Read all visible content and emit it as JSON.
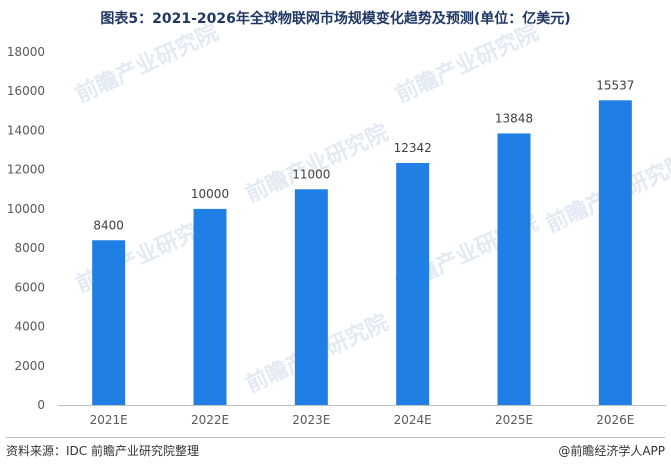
{
  "header": {
    "title": "图表5：2021-2026年全球物联网市场规模变化趋势及预测(单位：亿美元)"
  },
  "footer": {
    "source": "资料来源：IDC 前瞻产业研究院整理",
    "brand": "@前瞻经济学人APP"
  },
  "watermark": {
    "text": "前瞻产业研究院"
  },
  "colors": {
    "bar": "#1f7fe5",
    "axis": "#bfbfbf",
    "title": "#1f3864"
  },
  "chart_data": {
    "type": "bar",
    "title": "图表5：2021-2026年全球物联网市场规模变化趋势及预测(单位：亿美元)",
    "xlabel": "",
    "ylabel": "",
    "categories": [
      "2021E",
      "2022E",
      "2023E",
      "2024E",
      "2025E",
      "2026E"
    ],
    "values": [
      8400,
      10000,
      11000,
      12342,
      13848,
      15537
    ],
    "value_labels": [
      "8400",
      "10000",
      "11000",
      "12342",
      "13848",
      "15537"
    ],
    "ylim": [
      0,
      18000
    ],
    "yticks": [
      "0",
      "2000",
      "4000",
      "6000",
      "8000",
      "10000",
      "12000",
      "14000",
      "16000",
      "18000"
    ],
    "grid": false,
    "legend": "none"
  }
}
